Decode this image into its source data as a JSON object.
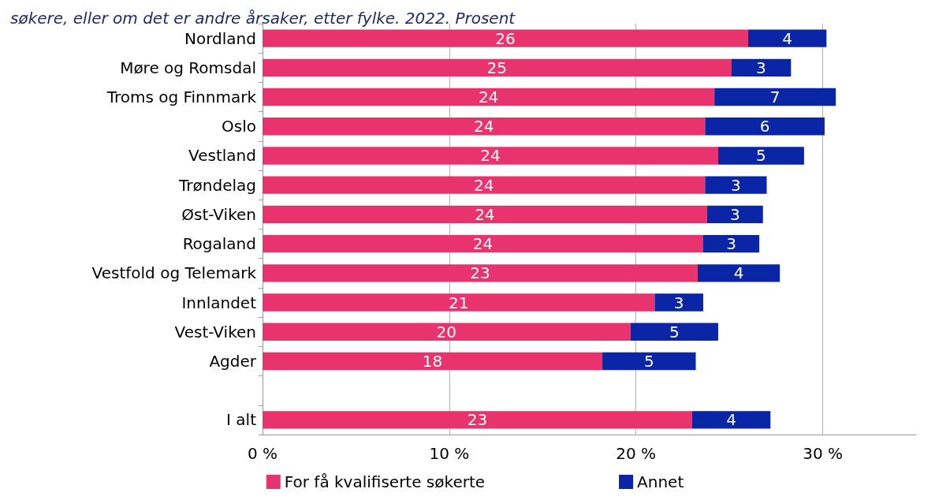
{
  "chart_data": {
    "type": "bar",
    "orientation": "horizontal",
    "stacked": true,
    "subtitle": "søkere, eller om det er andre årsaker, etter fylke. 2022. Prosent",
    "categories": [
      "Nordland",
      "Møre og Romsdal",
      "Troms og Finnmark",
      "Oslo",
      "Vestland",
      "Trøndelag",
      "Øst-Viken",
      "Rogaland",
      "Vestfold og Telemark",
      "Innlandet",
      "Vest-Viken",
      "Agder",
      null,
      "I alt"
    ],
    "series": [
      {
        "name": "For få kvalifiserte søkerte",
        "color": "#e8336f",
        "values": [
          26.0,
          25.1,
          24.2,
          23.7,
          24.4,
          23.7,
          23.8,
          23.6,
          23.3,
          21.0,
          19.7,
          18.2,
          null,
          23.0
        ],
        "value_labels": [
          "26",
          "25",
          "24",
          "24",
          "24",
          "24",
          "24",
          "24",
          "23",
          "21",
          "20",
          "18",
          null,
          "23"
        ]
      },
      {
        "name": "Annet",
        "color": "#0a25a5",
        "values": [
          4.2,
          3.2,
          6.5,
          6.4,
          4.6,
          3.3,
          3.0,
          3.0,
          4.4,
          2.6,
          4.7,
          5.0,
          null,
          4.2
        ],
        "value_labels": [
          "4",
          "3",
          "7",
          "6",
          "5",
          "3",
          "3",
          "3",
          "4",
          "3",
          "5",
          "5",
          null,
          "4"
        ]
      }
    ],
    "xlim": [
      0,
      35
    ],
    "xticks": [
      {
        "value": 0,
        "label": "0 %"
      },
      {
        "value": 10,
        "label": "10 %"
      },
      {
        "value": 20,
        "label": "20 %"
      },
      {
        "value": 30,
        "label": "30 %"
      }
    ],
    "grid": "x",
    "legend": "bottom"
  }
}
